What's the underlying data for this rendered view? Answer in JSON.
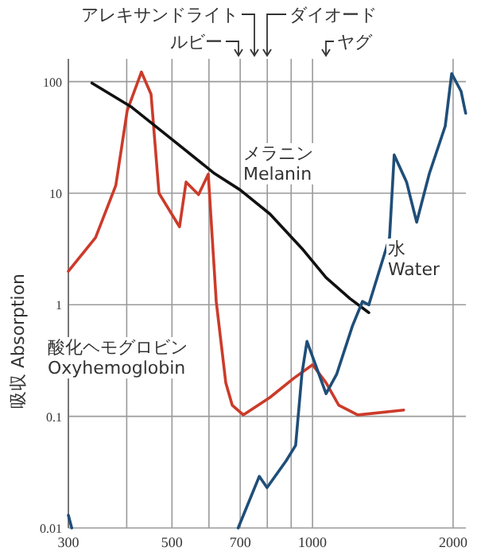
{
  "chart_data": {
    "type": "line",
    "ylabel": "吸収 Absorption",
    "log": "xy",
    "grid": true,
    "marker": "none",
    "line_style": "solid",
    "xlim": [
      300,
      2130
    ],
    "ylim": [
      0.01,
      160
    ],
    "xticks": [
      300,
      {
        "value": 400,
        "label": null
      },
      500,
      {
        "value": 600,
        "label": null
      },
      700,
      {
        "value": 800,
        "label": null
      },
      {
        "value": 900,
        "label": null
      },
      1000,
      2000
    ],
    "yticks": [
      0.01,
      0.1,
      1,
      10,
      100
    ],
    "series": [
      {
        "name": "酸化ヘモグロビン Oxyhemoglobin",
        "color": "#cc3b2a",
        "x": [
          300,
          343,
          379,
          401,
          430,
          451,
          469,
          519,
          536,
          570,
          598,
          622,
          652,
          673,
          711,
          811,
          912,
          1000,
          1069,
          1138,
          1250,
          1567
        ],
        "values": [
          2,
          4,
          11.7,
          55,
          122,
          77,
          10,
          5,
          12.6,
          9.7,
          14.8,
          1.07,
          0.2,
          0.126,
          0.103,
          0.148,
          0.22,
          0.29,
          0.2,
          0.126,
          0.103,
          0.114
        ]
      },
      {
        "name": "メラニン Melanin",
        "color": "#111111",
        "x": [
          337,
          410,
          507,
          617,
          700,
          811,
          949,
          1069,
          1202,
          1320
        ],
        "values": [
          97,
          59,
          29,
          15,
          10.7,
          6.5,
          3.2,
          1.75,
          1.14,
          0.85
        ]
      },
      {
        "name": "水 Water",
        "color": "#1f4e79",
        "x": [
          300,
          305,
          500,
          693,
          769,
          799,
          878,
          920,
          949,
          973,
          1069,
          1127,
          1218,
          1279,
          1320,
          1462,
          1496,
          1590,
          1671,
          1779,
          1924,
          1986,
          2080,
          2128
        ],
        "values": [
          0.013,
          0.01,
          null,
          0.01,
          0.029,
          0.023,
          0.04,
          0.055,
          0.24,
          0.47,
          0.16,
          0.24,
          0.65,
          1.07,
          1.0,
          4,
          22,
          12.6,
          5.5,
          15,
          40,
          118,
          82,
          52
        ]
      }
    ],
    "annotations": [
      "ルビー",
      "アレキサンドライト",
      "ダイオード",
      "ヤグ"
    ]
  }
}
